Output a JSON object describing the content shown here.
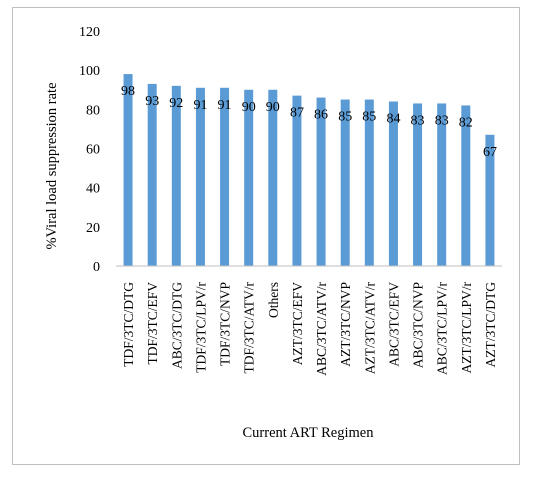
{
  "chart_data": {
    "type": "bar",
    "title": "",
    "xlabel": "Current ART Regimen",
    "ylabel": "%Viral load suppression rate",
    "ylim": [
      0,
      120
    ],
    "yticks": [
      0,
      20,
      40,
      60,
      80,
      100,
      120
    ],
    "grid": false,
    "legend": "none",
    "bar_color": "#5b9bd5",
    "categories": [
      "TDF/3TC/DTG",
      "TDF/3TC/EFV",
      "ABC/3TC/DTG",
      "TDF/3TC/LPV/r",
      "TDF/3TC/NVP",
      "TDF/3TC/ATV/r",
      "Others",
      "AZT/3TC/EFV",
      "ABC/3TC/ATV/r",
      "AZT/3TC/NVP",
      "AZT/3TC/ATV/r",
      "ABC/3TC/EFV",
      "ABC/3TC/NVP",
      "ABC/3TC/LPV/r",
      "AZT/3TC/LPV/r",
      "AZT/3TC/DTG"
    ],
    "values": [
      98,
      93,
      92,
      91,
      91,
      90,
      90,
      87,
      86,
      85,
      85,
      84,
      83,
      83,
      82,
      67
    ]
  }
}
